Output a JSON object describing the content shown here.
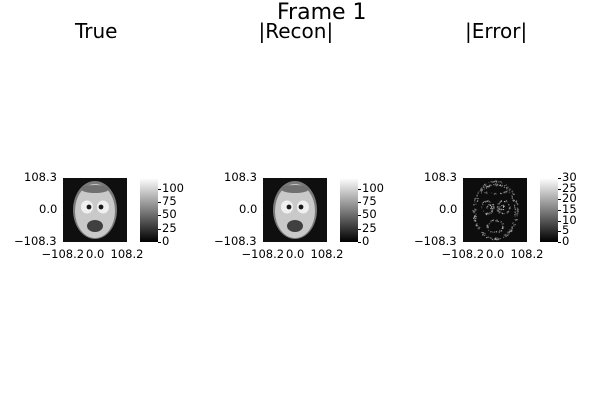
{
  "figure": {
    "title": "Frame 1"
  },
  "chart_data": [
    {
      "type": "heatmap",
      "title": "True",
      "content": "phantom-face",
      "xticks": [
        "−108.2",
        "0.0",
        "108.2"
      ],
      "yticks": [
        "108.3",
        "0.0",
        "−108.3"
      ],
      "xlim": [
        -108.2,
        108.2
      ],
      "ylim": [
        -108.3,
        108.3
      ],
      "colormap": "grays",
      "colorbar_ticks": [
        0,
        25,
        50,
        75,
        100
      ],
      "clim": [
        0,
        120
      ]
    },
    {
      "type": "heatmap",
      "title": "|Recon|",
      "content": "phantom-face",
      "xticks": [
        "−108.2",
        "0.0",
        "108.2"
      ],
      "yticks": [
        "108.3",
        "0.0",
        "−108.3"
      ],
      "xlim": [
        -108.2,
        108.2
      ],
      "ylim": [
        -108.3,
        108.3
      ],
      "colormap": "grays",
      "colorbar_ticks": [
        0,
        25,
        50,
        75,
        100
      ],
      "clim": [
        0,
        120
      ]
    },
    {
      "type": "heatmap",
      "title": "|Error|",
      "content": "error-edges",
      "xticks": [
        "−108.2",
        "0.0",
        "108.2"
      ],
      "yticks": [
        "108.3",
        "0.0",
        "−108.3"
      ],
      "xlim": [
        -108.2,
        108.2
      ],
      "ylim": [
        -108.3,
        108.3
      ],
      "colormap": "grays",
      "colorbar_ticks": [
        0,
        5,
        10,
        15,
        20,
        25,
        30
      ],
      "clim": [
        0,
        30
      ]
    }
  ]
}
